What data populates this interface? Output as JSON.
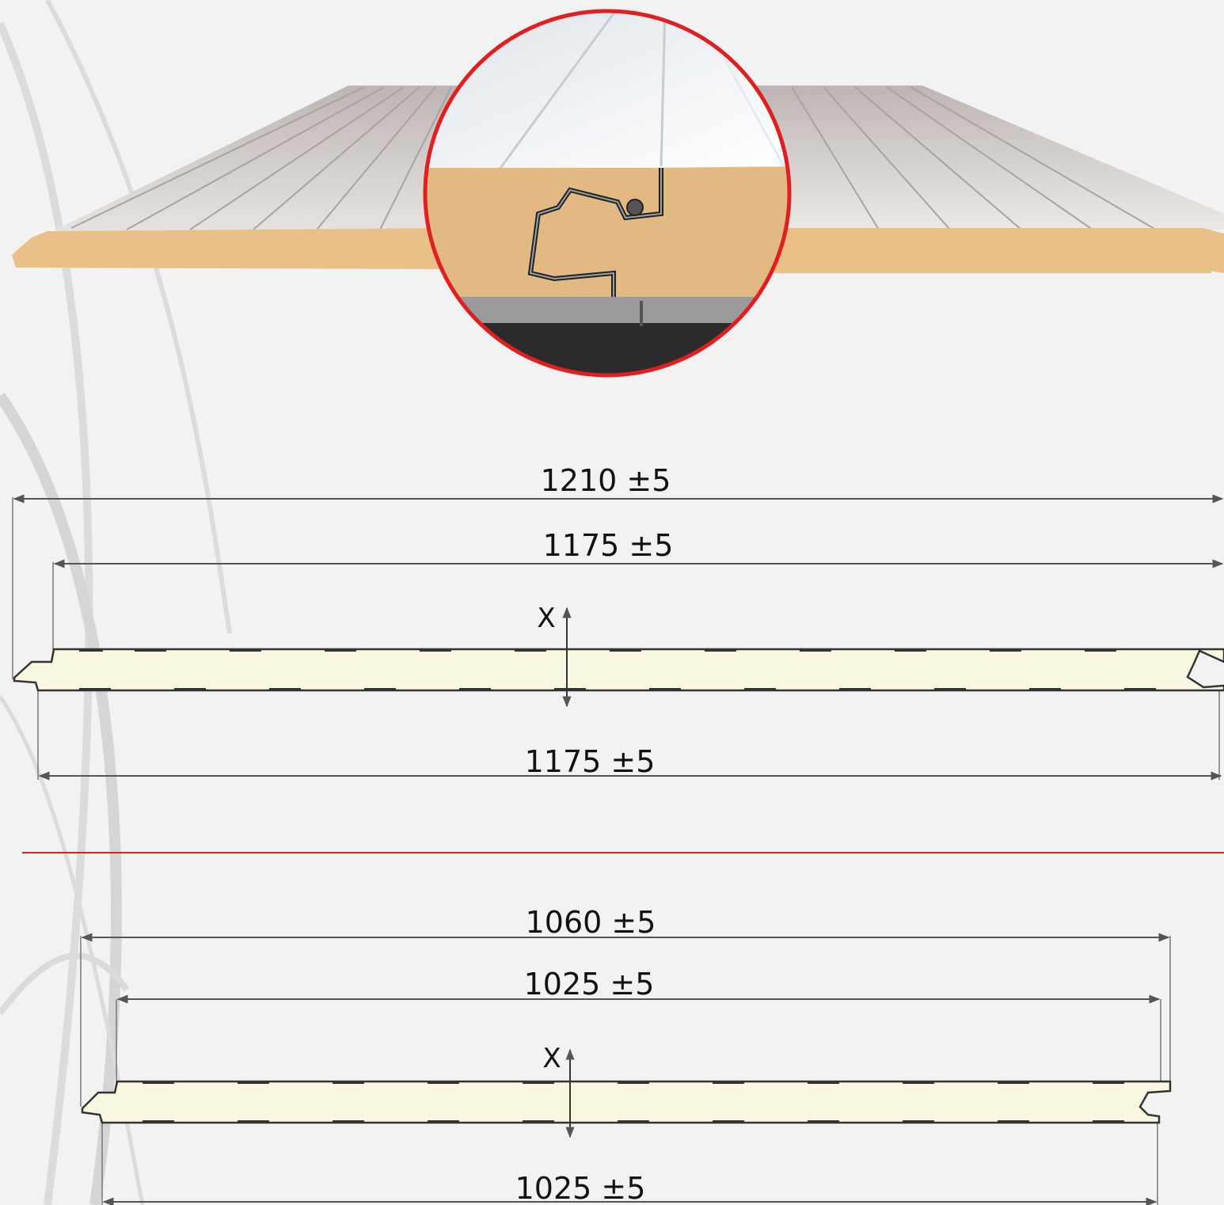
{
  "colors": {
    "background": "#f2f2f2",
    "foam_core": "#e8c088",
    "metal_sheet": "#d9d4d2",
    "section_fill": "#faf7e0",
    "outline": "#333333",
    "accent_red": "#e02020",
    "dimension_line": "#555555"
  },
  "diagram": {
    "detail_view": {
      "name": "panel-joint-detail"
    },
    "panel_1": {
      "overall_width": "1210 ±5",
      "cover_width_top": "1175 ±5",
      "thickness_label": "X",
      "cover_width_bottom": "1175 ±5"
    },
    "panel_2": {
      "overall_width": "1060 ±5",
      "cover_width_top": "1025 ±5",
      "thickness_label": "X",
      "cover_width_bottom": "1025 ±5"
    }
  }
}
